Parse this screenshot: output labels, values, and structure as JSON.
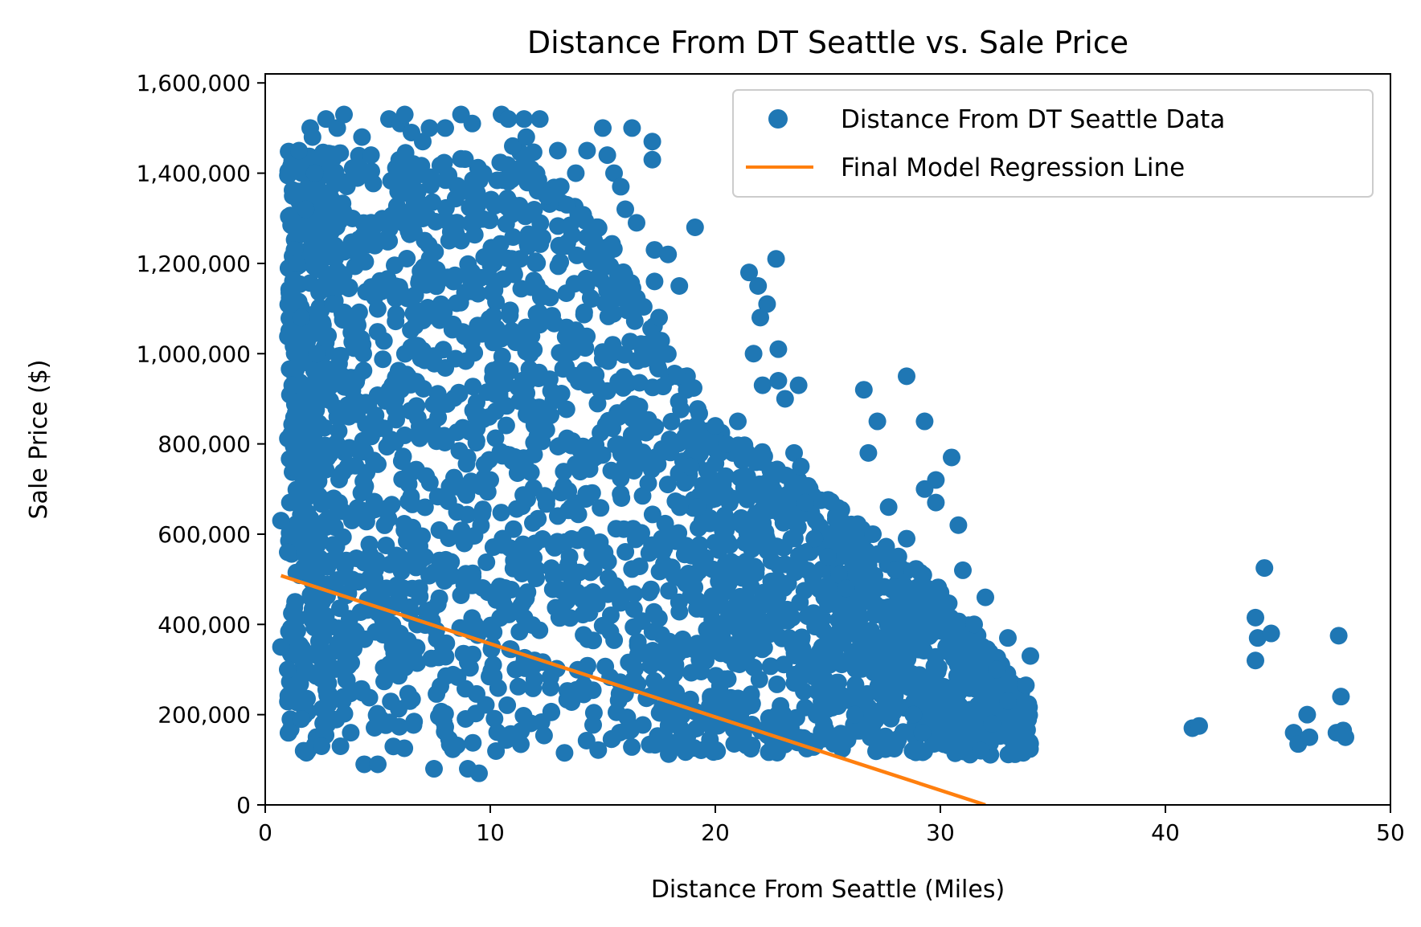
{
  "chart_data": {
    "type": "scatter",
    "title": "Distance From DT Seattle vs. Sale Price",
    "xlabel": "Distance From Seattle (Miles)",
    "ylabel": "Sale Price ($)",
    "xlim": [
      0,
      50
    ],
    "ylim": [
      0,
      1620000
    ],
    "x_ticks": [
      0,
      10,
      20,
      30,
      40,
      50
    ],
    "x_tick_labels": [
      "0",
      "10",
      "20",
      "30",
      "40",
      "50"
    ],
    "y_ticks": [
      0,
      200000,
      400000,
      600000,
      800000,
      1000000,
      1200000,
      1400000,
      1600000
    ],
    "y_tick_labels": [
      "0",
      "200,000",
      "400,000",
      "600,000",
      "800,000",
      "1,000,000",
      "1,200,000",
      "1,400,000",
      "1,600,000"
    ],
    "grid": false,
    "legend_position": "top-right",
    "series": [
      {
        "name": "Distance From DT Seattle Data",
        "kind": "scatter",
        "color": "#1f77b4",
        "points": [
          [
            0.7,
            630000
          ],
          [
            0.7,
            350000
          ],
          [
            1.0,
            560000
          ],
          [
            1.0,
            300000
          ],
          [
            1.2,
            930000
          ],
          [
            1.3,
            1230000
          ],
          [
            1.4,
            1200000
          ],
          [
            1.5,
            1450000
          ],
          [
            1.6,
            1080000
          ],
          [
            1.6,
            190000
          ],
          [
            1.8,
            1320000
          ],
          [
            2.0,
            1500000
          ],
          [
            2.1,
            1480000
          ],
          [
            2.2,
            1400000
          ],
          [
            2.3,
            1000000
          ],
          [
            2.5,
            130000
          ],
          [
            2.7,
            1520000
          ],
          [
            3.0,
            1110000
          ],
          [
            3.2,
            1500000
          ],
          [
            3.5,
            1530000
          ],
          [
            3.8,
            160000
          ],
          [
            4.3,
            1480000
          ],
          [
            4.4,
            90000
          ],
          [
            4.7,
            1440000
          ],
          [
            5.0,
            90000
          ],
          [
            5.5,
            1520000
          ],
          [
            6.0,
            1510000
          ],
          [
            6.2,
            1530000
          ],
          [
            6.5,
            1490000
          ],
          [
            7.0,
            1470000
          ],
          [
            7.3,
            1500000
          ],
          [
            7.5,
            80000
          ],
          [
            8.0,
            1500000
          ],
          [
            8.7,
            1530000
          ],
          [
            9.0,
            80000
          ],
          [
            9.2,
            1510000
          ],
          [
            9.5,
            70000
          ],
          [
            10.5,
            1530000
          ],
          [
            10.8,
            1520000
          ],
          [
            11.0,
            1460000
          ],
          [
            11.5,
            1520000
          ],
          [
            11.6,
            1480000
          ],
          [
            12.2,
            1520000
          ],
          [
            12.5,
            1350000
          ],
          [
            13.0,
            1450000
          ],
          [
            13.4,
            1330000
          ],
          [
            13.8,
            1400000
          ],
          [
            14.3,
            1450000
          ],
          [
            15.0,
            1500000
          ],
          [
            15.2,
            1440000
          ],
          [
            15.5,
            1400000
          ],
          [
            15.8,
            1370000
          ],
          [
            16.0,
            1320000
          ],
          [
            16.3,
            1500000
          ],
          [
            16.5,
            1290000
          ],
          [
            17.2,
            1470000
          ],
          [
            17.2,
            1430000
          ],
          [
            17.3,
            1230000
          ],
          [
            17.3,
            1160000
          ],
          [
            17.5,
            1080000
          ],
          [
            17.9,
            1220000
          ],
          [
            18.3,
            950000
          ],
          [
            18.4,
            1150000
          ],
          [
            18.9,
            750000
          ],
          [
            19.1,
            1280000
          ],
          [
            19.2,
            660000
          ],
          [
            20.0,
            840000
          ],
          [
            20.5,
            800000
          ],
          [
            21.0,
            850000
          ],
          [
            21.5,
            1180000
          ],
          [
            21.7,
            1000000
          ],
          [
            21.9,
            1150000
          ],
          [
            22.0,
            1080000
          ],
          [
            22.1,
            930000
          ],
          [
            22.3,
            1110000
          ],
          [
            22.7,
            1210000
          ],
          [
            22.8,
            1010000
          ],
          [
            22.8,
            940000
          ],
          [
            23.1,
            900000
          ],
          [
            23.7,
            930000
          ],
          [
            23.5,
            780000
          ],
          [
            23.8,
            750000
          ],
          [
            24.0,
            670000
          ],
          [
            24.4,
            590000
          ],
          [
            25.0,
            550000
          ],
          [
            25.5,
            510000
          ],
          [
            25.8,
            480000
          ],
          [
            26.2,
            200000
          ],
          [
            26.6,
            920000
          ],
          [
            26.8,
            780000
          ],
          [
            27.0,
            600000
          ],
          [
            27.2,
            850000
          ],
          [
            27.7,
            660000
          ],
          [
            28.0,
            520000
          ],
          [
            28.5,
            590000
          ],
          [
            28.5,
            950000
          ],
          [
            28.8,
            200000
          ],
          [
            29.2,
            160000
          ],
          [
            29.3,
            850000
          ],
          [
            29.3,
            700000
          ],
          [
            29.8,
            720000
          ],
          [
            29.8,
            670000
          ],
          [
            30.5,
            770000
          ],
          [
            30.8,
            620000
          ],
          [
            31.0,
            520000
          ],
          [
            31.5,
            400000
          ],
          [
            31.8,
            120000
          ],
          [
            32.0,
            460000
          ],
          [
            32.3,
            180000
          ],
          [
            32.5,
            300000
          ],
          [
            33.0,
            370000
          ],
          [
            33.0,
            230000
          ],
          [
            34.0,
            330000
          ],
          [
            33.8,
            265000
          ],
          [
            41.2,
            170000
          ],
          [
            41.5,
            175000
          ],
          [
            44.0,
            415000
          ],
          [
            44.1,
            370000
          ],
          [
            44.0,
            320000
          ],
          [
            44.4,
            525000
          ],
          [
            44.7,
            380000
          ],
          [
            45.7,
            160000
          ],
          [
            45.9,
            135000
          ],
          [
            46.3,
            200000
          ],
          [
            46.4,
            150000
          ],
          [
            47.6,
            160000
          ],
          [
            47.7,
            375000
          ],
          [
            47.8,
            240000
          ],
          [
            47.9,
            165000
          ],
          [
            48.0,
            150000
          ]
        ]
      },
      {
        "name": "Final Model Regression Line",
        "kind": "line",
        "color": "#ff7f0e",
        "points": [
          [
            0.7,
            508000
          ],
          [
            32.0,
            0
          ]
        ]
      }
    ]
  }
}
